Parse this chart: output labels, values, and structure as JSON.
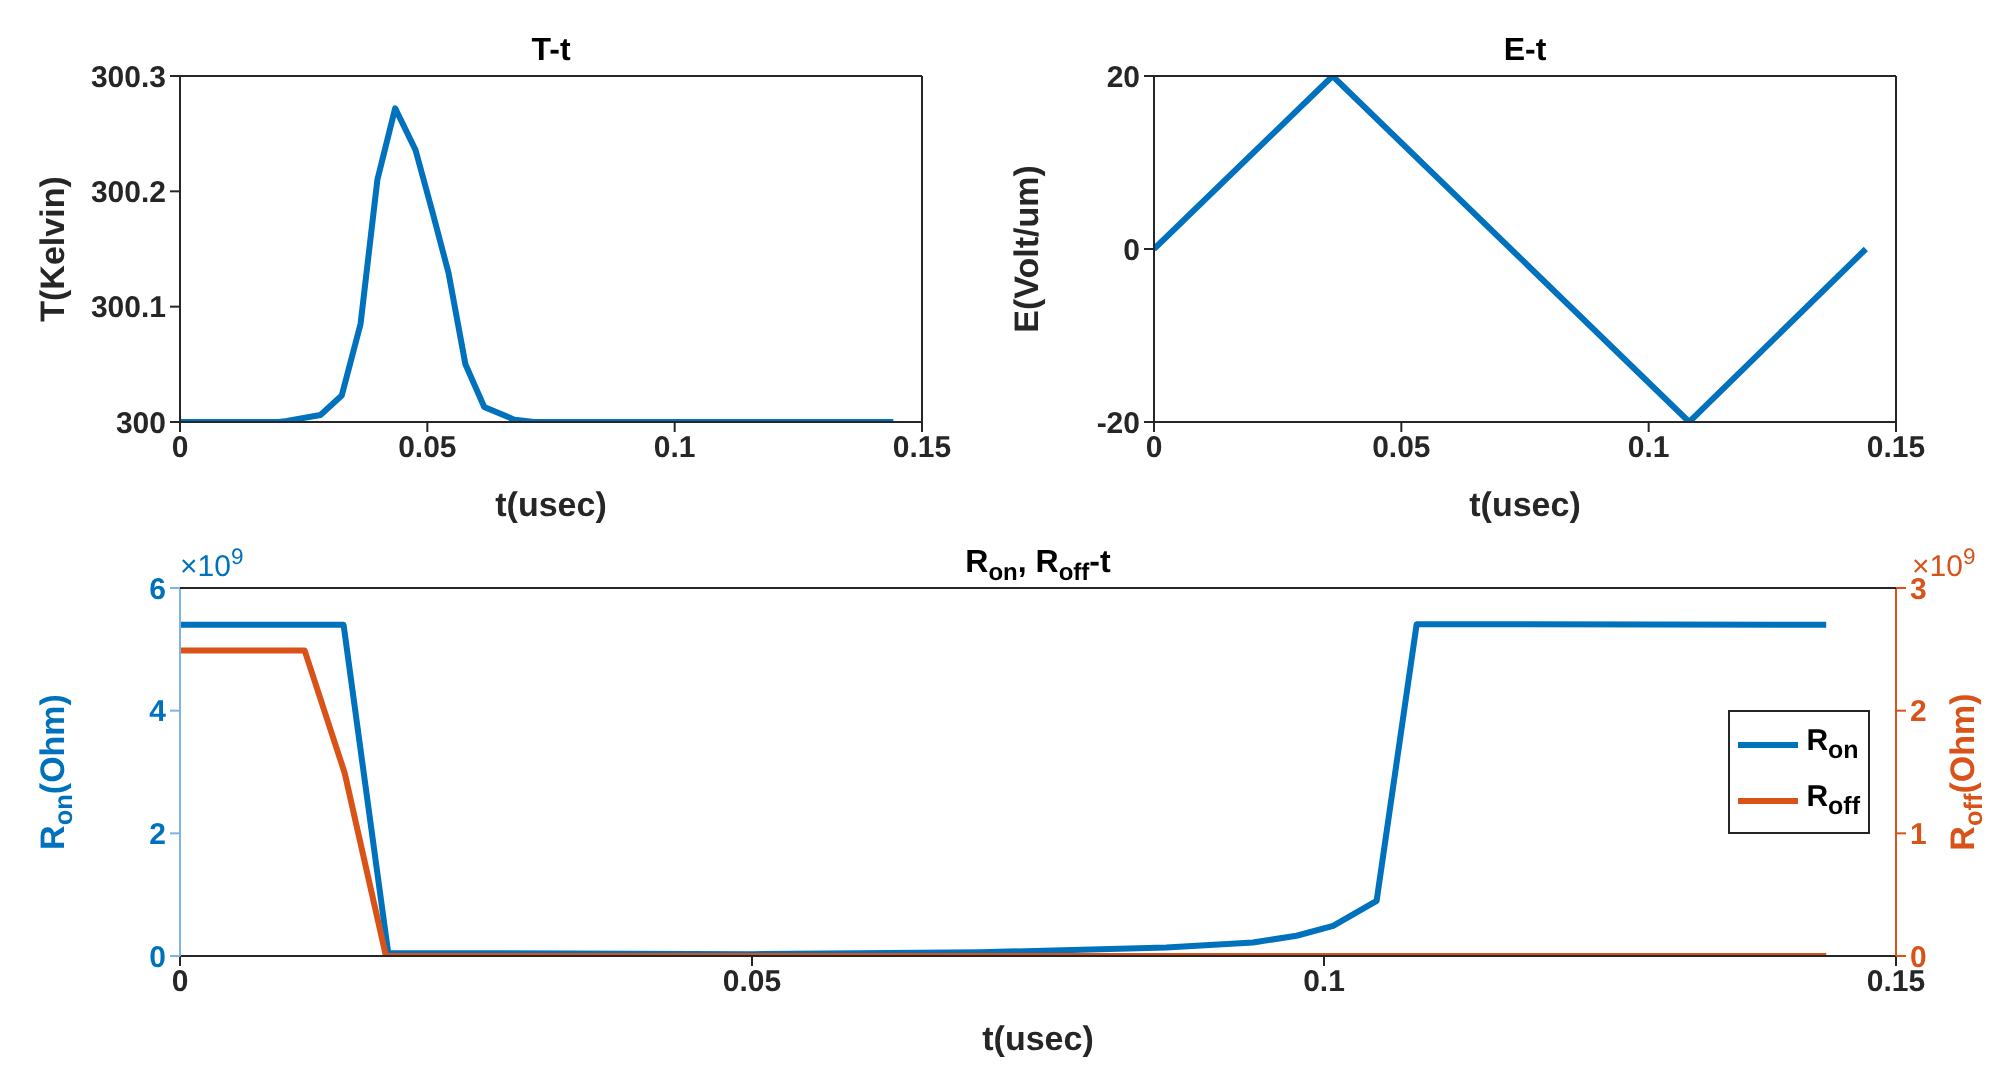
{
  "chart_data": [
    {
      "type": "line",
      "title": "T-t",
      "xlabel": "t(usec)",
      "ylabel": "T(Kelvin)",
      "xlim": [
        0,
        0.15
      ],
      "xticks": [
        0,
        0.05,
        0.1,
        0.15
      ],
      "ylim": [
        300,
        300.3
      ],
      "yticks": [
        300,
        300.1,
        300.2,
        300.3
      ],
      "legend": false,
      "series": [
        {
          "color": "#0072bd",
          "x": [
            0,
            0.02,
            0.0216,
            0.0284,
            0.0327,
            0.0365,
            0.0399,
            0.0435,
            0.0476,
            0.0511,
            0.0543,
            0.0577,
            0.0615,
            0.0676,
            0.0716,
            0.1442
          ],
          "values": [
            300,
            300,
            300.001,
            300.006,
            300.023,
            300.085,
            300.21,
            300.272,
            300.236,
            300.181,
            300.129,
            300.05,
            300.013,
            300.002,
            300,
            300
          ]
        }
      ]
    },
    {
      "type": "line",
      "title": "E-t",
      "xlabel": "t(usec)",
      "ylabel": "E(Volt/um)",
      "xlim": [
        0,
        0.15
      ],
      "xticks": [
        0,
        0.05,
        0.1,
        0.15
      ],
      "ylim": [
        -20,
        20
      ],
      "yticks": [
        -20,
        0,
        20
      ],
      "legend": false,
      "series": [
        {
          "color": "#0072bd",
          "x": [
            0,
            0.0361,
            0.1082,
            0.1439
          ],
          "values": [
            0,
            20,
            -20,
            0
          ]
        }
      ]
    },
    {
      "type": "line",
      "title": "R$_{on}$, R$_{off}$-t",
      "xlabel": "t(usec)",
      "ylabel": "R$_{on}$(Ohm)",
      "y2label": "R$_{off}$(Ohm)",
      "xlim": [
        0,
        0.15
      ],
      "xticks": [
        0,
        0.05,
        0.1,
        0.15
      ],
      "ylim": [
        0,
        6
      ],
      "yticks": [
        0,
        2,
        4,
        6
      ],
      "y2lim": [
        0,
        3
      ],
      "y2ticks": [
        0,
        1,
        2,
        3
      ],
      "legend": "right",
      "annotations": [
        "×10$^{9}$",
        "×10$^{9}$"
      ],
      "series": [
        {
          "name": "R$_{on}$",
          "color": "#0072bd",
          "x": [
            0,
            0.0143,
            0.0182,
            0.05,
            0.07,
            0.0862,
            0.0938,
            0.0976,
            0.1008,
            0.1046,
            0.1081,
            0.1439
          ],
          "values": [
            5.4,
            5.4,
            0.05,
            0.03,
            0.06,
            0.14,
            0.22,
            0.33,
            0.49,
            0.9,
            5.41,
            5.4
          ]
        },
        {
          "name": "R$_{off}$",
          "color": "#d95319",
          "axis": "y2",
          "x": [
            0,
            0.0109,
            0.0144,
            0.018,
            0.1439
          ],
          "values": [
            2.49,
            2.49,
            1.49,
            0,
            0
          ]
        }
      ]
    }
  ]
}
